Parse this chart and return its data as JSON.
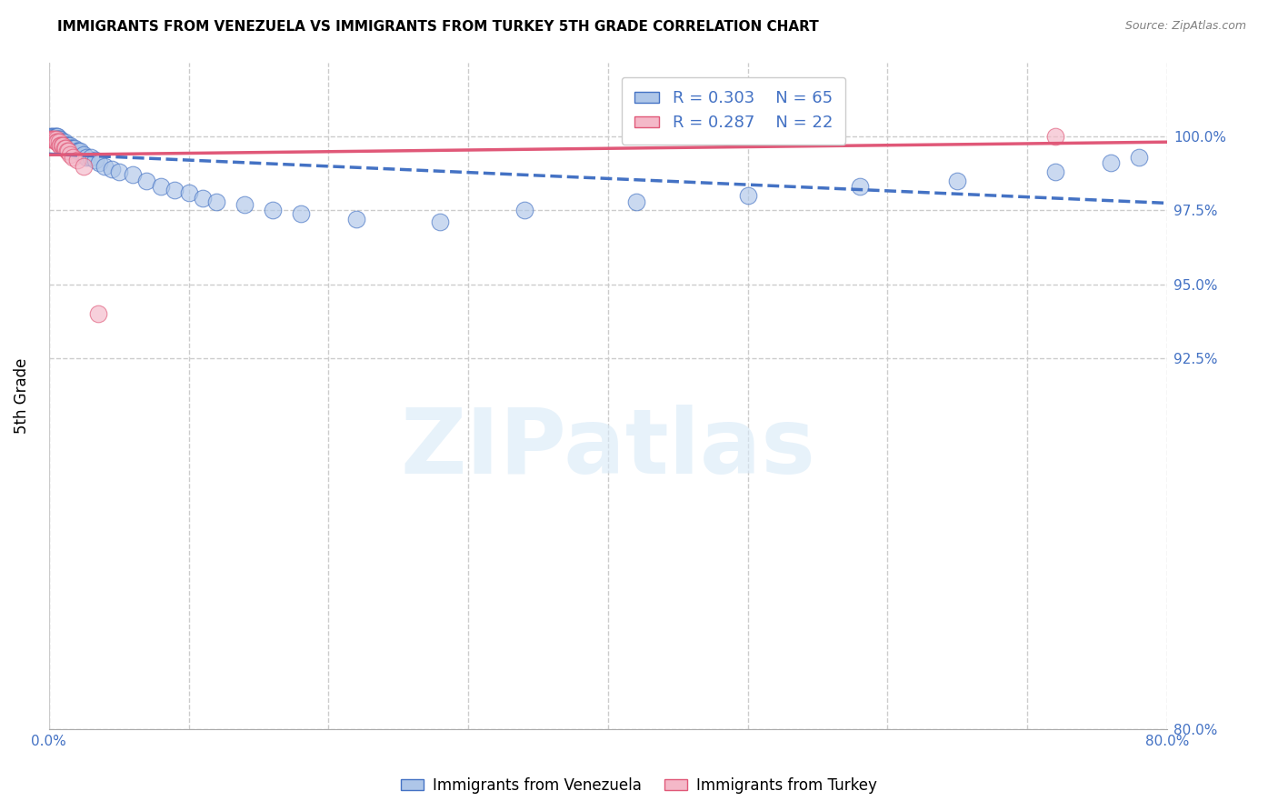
{
  "title": "IMMIGRANTS FROM VENEZUELA VS IMMIGRANTS FROM TURKEY 5TH GRADE CORRELATION CHART",
  "source": "Source: ZipAtlas.com",
  "ylabel": "5th Grade",
  "watermark": "ZIPatlas",
  "xlim": [
    0.0,
    0.8
  ],
  "ylim": [
    0.8,
    1.025
  ],
  "xticks": [
    0.0,
    0.1,
    0.2,
    0.3,
    0.4,
    0.5,
    0.6,
    0.7,
    0.8
  ],
  "xticklabels": [
    "0.0%",
    "",
    "",
    "",
    "",
    "",
    "",
    "",
    "80.0%"
  ],
  "ytick_positions": [
    0.8,
    0.925,
    0.95,
    0.975,
    1.0
  ],
  "yticklabels_right": [
    "80.0%",
    "92.5%",
    "95.0%",
    "97.5%",
    "100.0%"
  ],
  "legend_R1": "R = 0.303",
  "legend_N1": "N = 65",
  "legend_R2": "R = 0.287",
  "legend_N2": "N = 22",
  "color_venezuela": "#aec6e8",
  "color_turkey": "#f4b8c8",
  "line_color_venezuela": "#4472c4",
  "line_color_turkey": "#e05878",
  "axis_label_color": "#4472c4",
  "venezuela_x": [
    0.001,
    0.002,
    0.003,
    0.003,
    0.004,
    0.004,
    0.005,
    0.005,
    0.005,
    0.006,
    0.006,
    0.006,
    0.007,
    0.007,
    0.008,
    0.008,
    0.008,
    0.009,
    0.009,
    0.009,
    0.01,
    0.01,
    0.011,
    0.011,
    0.012,
    0.012,
    0.013,
    0.013,
    0.014,
    0.015,
    0.015,
    0.016,
    0.017,
    0.018,
    0.02,
    0.021,
    0.022,
    0.025,
    0.027,
    0.03,
    0.033,
    0.036,
    0.04,
    0.045,
    0.05,
    0.06,
    0.07,
    0.08,
    0.09,
    0.1,
    0.11,
    0.12,
    0.14,
    0.16,
    0.18,
    0.22,
    0.28,
    0.34,
    0.42,
    0.5,
    0.58,
    0.65,
    0.72,
    0.76,
    0.78
  ],
  "venezuela_y": [
    1.0,
    1.0,
    1.0,
    0.999,
    1.0,
    0.999,
    1.0,
    1.0,
    0.999,
    1.0,
    0.999,
    0.999,
    0.999,
    0.998,
    0.999,
    0.998,
    0.998,
    0.998,
    0.998,
    0.997,
    0.998,
    0.997,
    0.998,
    0.997,
    0.997,
    0.997,
    0.997,
    0.997,
    0.997,
    0.997,
    0.996,
    0.996,
    0.996,
    0.996,
    0.995,
    0.995,
    0.995,
    0.994,
    0.993,
    0.993,
    0.992,
    0.991,
    0.99,
    0.989,
    0.988,
    0.987,
    0.985,
    0.983,
    0.982,
    0.981,
    0.979,
    0.978,
    0.977,
    0.975,
    0.974,
    0.972,
    0.971,
    0.975,
    0.978,
    0.98,
    0.983,
    0.985,
    0.988,
    0.991,
    0.993
  ],
  "turkey_x": [
    0.001,
    0.002,
    0.003,
    0.004,
    0.005,
    0.005,
    0.006,
    0.007,
    0.008,
    0.008,
    0.009,
    0.01,
    0.011,
    0.012,
    0.013,
    0.014,
    0.015,
    0.017,
    0.02,
    0.025,
    0.035,
    0.72
  ],
  "turkey_y": [
    0.999,
    0.999,
    0.999,
    0.999,
    0.999,
    0.998,
    0.998,
    0.998,
    0.997,
    0.997,
    0.997,
    0.997,
    0.996,
    0.996,
    0.995,
    0.995,
    0.994,
    0.993,
    0.992,
    0.99,
    0.94,
    1.0
  ]
}
